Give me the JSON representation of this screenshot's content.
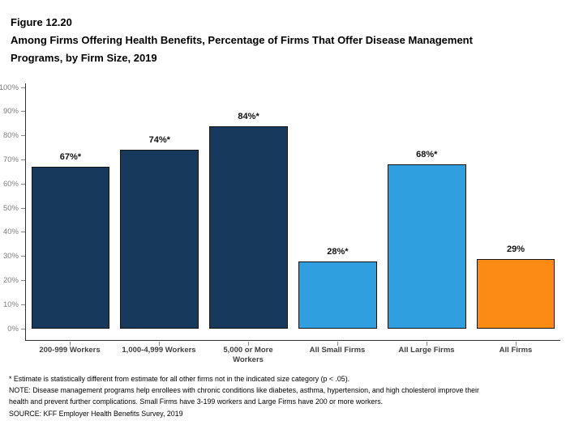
{
  "figure": {
    "label": "Figure 12.20",
    "title_lines": [
      "Among Firms Offering Health Benefits, Percentage of Firms That Offer Disease Management",
      "Programs, by Firm Size, 2019"
    ]
  },
  "chart_data": {
    "type": "bar",
    "title": "Among Firms Offering Health Benefits, Percentage of Firms That Offer Disease Management Programs, by Firm Size, 2019",
    "categories": [
      "200-999 Workers",
      "1,000-4,999 Workers",
      "5,000 or More Workers",
      "All Small Firms",
      "All Large Firms",
      "All Firms"
    ],
    "values": [
      67,
      74,
      84,
      28,
      68,
      29
    ],
    "data_labels": [
      "67%*",
      "74%*",
      "84%*",
      "28%*",
      "68%*",
      "29%"
    ],
    "bar_colors": [
      "#173A5C",
      "#173A5C",
      "#173A5C",
      "#2F9FE0",
      "#2F9FE0",
      "#FB8B14"
    ],
    "xlabel": "",
    "ylabel": "",
    "ylim": [
      0,
      100
    ],
    "ytick_labels": [
      "0%",
      "10%",
      "20%",
      "30%",
      "40%",
      "50%",
      "60%",
      "70%",
      "80%",
      "90%",
      "100%"
    ],
    "grid": false,
    "legend": false,
    "colors": {
      "dark_navy": "#173A5C",
      "light_blue": "#2F9FE0",
      "orange": "#FB8B14",
      "axis_line": "#333333",
      "ytick_text": "#7f7f7f",
      "xtick_text": "#404040"
    }
  },
  "footnotes": {
    "lines": [
      "* Estimate is statistically different from estimate for all other firms not in the indicated size category (p < .05).",
      "NOTE: Disease management programs help enrollees with chronic conditions like diabetes, asthma, hypertension, and high cholesterol improve their",
      "health and prevent further complications. Small Firms have 3-199 workers and Large Firms have 200 or more workers.",
      "SOURCE: KFF Employer Health Benefits Survey, 2019"
    ]
  }
}
